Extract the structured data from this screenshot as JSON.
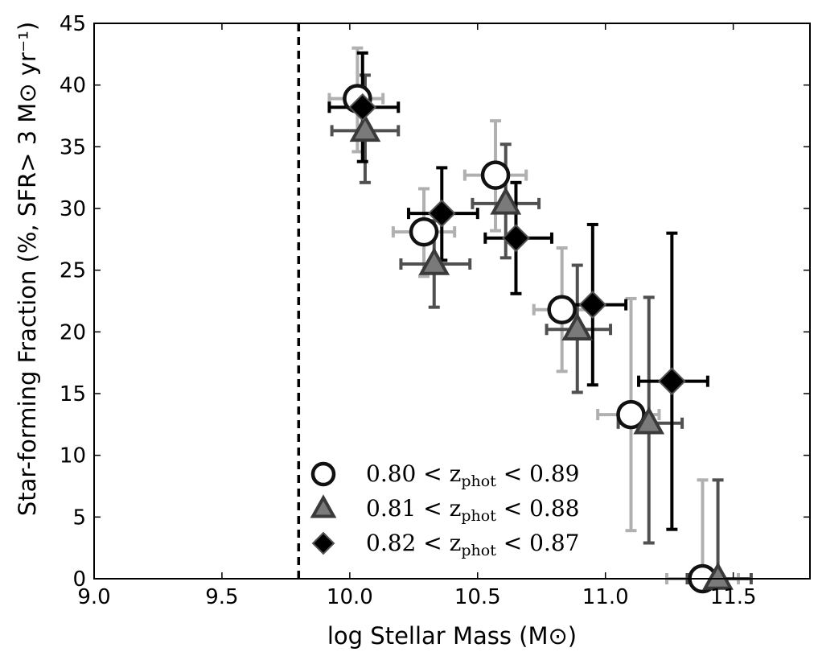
{
  "chart_data": {
    "type": "scatter",
    "xlabel": "log Stellar Mass (M⊙)",
    "ylabel": "Star-forming Fraction (%, SFR> 3 M⊙ yr⁻¹)",
    "xlim": [
      9.0,
      11.8
    ],
    "ylim": [
      0,
      45
    ],
    "xticks": [
      "9.0",
      "9.5",
      "10.0",
      "10.5",
      "11.0",
      "11.5"
    ],
    "yticks": [
      "0",
      "5",
      "10",
      "15",
      "20",
      "25",
      "30",
      "35",
      "40",
      "45"
    ],
    "grid": false,
    "legend_position": "bottom-center",
    "mass_limit": 9.8,
    "series": [
      {
        "name": "0.80 < zphot < 0.89",
        "legend_label": "0.80 < z",
        "legend_sub": "phot",
        "legend_tail": " < 0.89",
        "marker": "circle",
        "face": "#ffffff",
        "edge": "#111111",
        "errcolor": "#b0b0b0",
        "points": [
          {
            "x": 10.03,
            "y": 38.9,
            "xlo": 9.92,
            "xhi": 10.13,
            "ylo": 34.6,
            "yhi": 43.0
          },
          {
            "x": 10.29,
            "y": 28.1,
            "xlo": 10.17,
            "xhi": 10.41,
            "ylo": 24.5,
            "yhi": 31.6
          },
          {
            "x": 10.57,
            "y": 32.7,
            "xlo": 10.45,
            "xhi": 10.69,
            "ylo": 28.2,
            "yhi": 37.1
          },
          {
            "x": 10.83,
            "y": 21.8,
            "xlo": 10.72,
            "xhi": 10.95,
            "ylo": 16.8,
            "yhi": 26.8
          },
          {
            "x": 11.1,
            "y": 13.3,
            "xlo": 10.97,
            "xhi": 11.21,
            "ylo": 3.9,
            "yhi": 22.7
          },
          {
            "x": 11.38,
            "y": 0.0,
            "xlo": 11.24,
            "xhi": 11.52,
            "ylo": 0.0,
            "yhi": 8.0
          }
        ]
      },
      {
        "name": "0.81 < zphot < 0.88",
        "legend_label": "0.81 < z",
        "legend_sub": "phot",
        "legend_tail": " < 0.88",
        "marker": "triangle",
        "face": "#7a7a7a",
        "edge": "#3a3a3a",
        "errcolor": "#505050",
        "points": [
          {
            "x": 10.06,
            "y": 36.3,
            "xlo": 9.93,
            "xhi": 10.19,
            "ylo": 32.1,
            "yhi": 40.8
          },
          {
            "x": 10.33,
            "y": 25.5,
            "xlo": 10.2,
            "xhi": 10.47,
            "ylo": 22.0,
            "yhi": 29.0
          },
          {
            "x": 10.61,
            "y": 30.4,
            "xlo": 10.48,
            "xhi": 10.74,
            "ylo": 26.0,
            "yhi": 35.2
          },
          {
            "x": 10.89,
            "y": 20.2,
            "xlo": 10.77,
            "xhi": 11.02,
            "ylo": 15.1,
            "yhi": 25.4
          },
          {
            "x": 11.17,
            "y": 12.6,
            "xlo": 11.05,
            "xhi": 11.3,
            "ylo": 2.9,
            "yhi": 22.8
          },
          {
            "x": 11.44,
            "y": 0.0,
            "xlo": 11.32,
            "xhi": 11.57,
            "ylo": 0.0,
            "yhi": 8.0
          }
        ]
      },
      {
        "name": "0.82 < zphot < 0.87",
        "legend_label": "0.82 < z",
        "legend_sub": "phot",
        "legend_tail": " < 0.87",
        "marker": "diamond",
        "face": "#000000",
        "edge": "#000000",
        "errcolor": "#000000",
        "points": [
          {
            "x": 10.05,
            "y": 38.2,
            "xlo": 9.92,
            "xhi": 10.19,
            "ylo": 33.8,
            "yhi": 42.6
          },
          {
            "x": 10.36,
            "y": 29.6,
            "xlo": 10.23,
            "xhi": 10.5,
            "ylo": 25.8,
            "yhi": 33.3
          },
          {
            "x": 10.65,
            "y": 27.6,
            "xlo": 10.53,
            "xhi": 10.79,
            "ylo": 23.1,
            "yhi": 32.1
          },
          {
            "x": 10.95,
            "y": 22.2,
            "xlo": 10.83,
            "xhi": 11.08,
            "ylo": 15.7,
            "yhi": 28.7
          },
          {
            "x": 11.26,
            "y": 16.0,
            "xlo": 11.13,
            "xhi": 11.4,
            "ylo": 4.0,
            "yhi": 28.0
          }
        ]
      }
    ]
  }
}
